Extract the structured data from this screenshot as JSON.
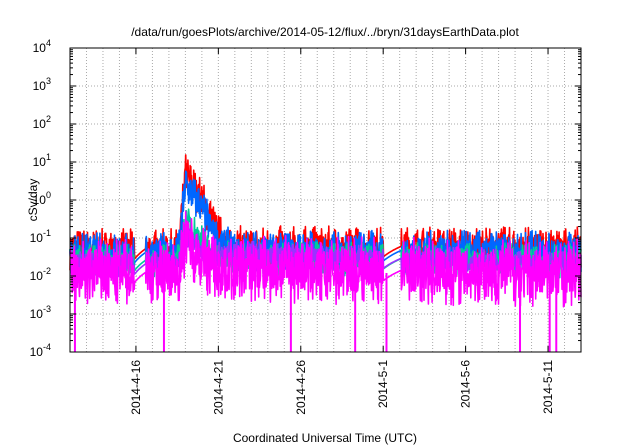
{
  "chart_data": {
    "type": "line",
    "title": "/data/run/goesPlots/archive/2014-05-12/flux/../bryn/31daysEarthData.plot",
    "xlabel": "Coordinated Universal Time (UTC)",
    "ylabel": "cSv/day",
    "yscale": "log",
    "ylim": [
      0.0001,
      10000
    ],
    "xlim": [
      "2014-04-12",
      "2014-05-13"
    ],
    "y_ticks": [
      {
        "base": "10",
        "exp": "-4"
      },
      {
        "base": "10",
        "exp": "-3"
      },
      {
        "base": "10",
        "exp": "-2"
      },
      {
        "base": "10",
        "exp": "-1"
      },
      {
        "base": "10",
        "exp": "0"
      },
      {
        "base": "10",
        "exp": "1"
      },
      {
        "base": "10",
        "exp": "2"
      },
      {
        "base": "10",
        "exp": "3"
      },
      {
        "base": "10",
        "exp": "4"
      }
    ],
    "x_ticks": [
      "2014-4-16",
      "2014-4-21",
      "2014-4-26",
      "2014-5-1",
      "2014-5-6",
      "2014-5-11"
    ],
    "grid": true,
    "gaps": [
      [
        "2014-04-15.9",
        "2014-04-16.6"
      ],
      [
        "2014-05-01.0",
        "2014-05-02.1"
      ]
    ],
    "series": [
      {
        "color": "#ff0000",
        "baseline": 0.05,
        "noise": 0.55,
        "points": [
          [
            "2014-04-12",
            0.05
          ],
          [
            "2014-04-18.6",
            0.05
          ],
          [
            "2014-04-19.0",
            5.0
          ],
          [
            "2014-04-20.0",
            1.0
          ],
          [
            "2014-04-21.0",
            0.12
          ],
          [
            "2014-04-22.0",
            0.06
          ],
          [
            "2014-05-13",
            0.055
          ]
        ]
      },
      {
        "color": "#0066ff",
        "baseline": 0.04,
        "noise": 0.55,
        "points": [
          [
            "2014-04-12",
            0.04
          ],
          [
            "2014-04-18.6",
            0.04
          ],
          [
            "2014-04-19.0",
            2.5
          ],
          [
            "2014-04-20.0",
            0.6
          ],
          [
            "2014-04-21.0",
            0.08
          ],
          [
            "2014-04-22.0",
            0.045
          ],
          [
            "2014-05-13",
            0.045
          ]
        ]
      },
      {
        "color": "#00cc99",
        "baseline": 0.025,
        "noise": 0.45,
        "points": [
          [
            "2014-04-12",
            0.025
          ],
          [
            "2014-04-18.6",
            0.025
          ],
          [
            "2014-04-19.0",
            0.3
          ],
          [
            "2014-04-20.0",
            0.08
          ],
          [
            "2014-04-21.0",
            0.03
          ],
          [
            "2014-05-13",
            0.025
          ]
        ]
      },
      {
        "color": "#9933ff",
        "baseline": 0.02,
        "noise": 0.35,
        "points": [
          [
            "2014-04-12",
            0.02
          ],
          [
            "2014-04-18.6",
            0.02
          ],
          [
            "2014-04-19.0",
            0.15
          ],
          [
            "2014-04-20.0",
            0.04
          ],
          [
            "2014-05-13",
            0.02
          ]
        ]
      },
      {
        "color": "#ff00ff",
        "baseline": 0.012,
        "noise": 0.9,
        "points": [
          [
            "2014-04-12",
            0.012
          ],
          [
            "2014-04-18.6",
            0.012
          ],
          [
            "2014-04-19.0",
            0.1
          ],
          [
            "2014-04-20.0",
            0.03
          ],
          [
            "2014-04-21.0",
            0.015
          ],
          [
            "2014-05-13",
            0.012
          ]
        ]
      }
    ],
    "dropouts": [
      "2014-04-12.3",
      "2014-04-17.7",
      "2014-04-25.4",
      "2014-04-29.3",
      "2014-05-01.2",
      "2014-05-09.3",
      "2014-05-11.1",
      "2014-05-11.5"
    ]
  }
}
